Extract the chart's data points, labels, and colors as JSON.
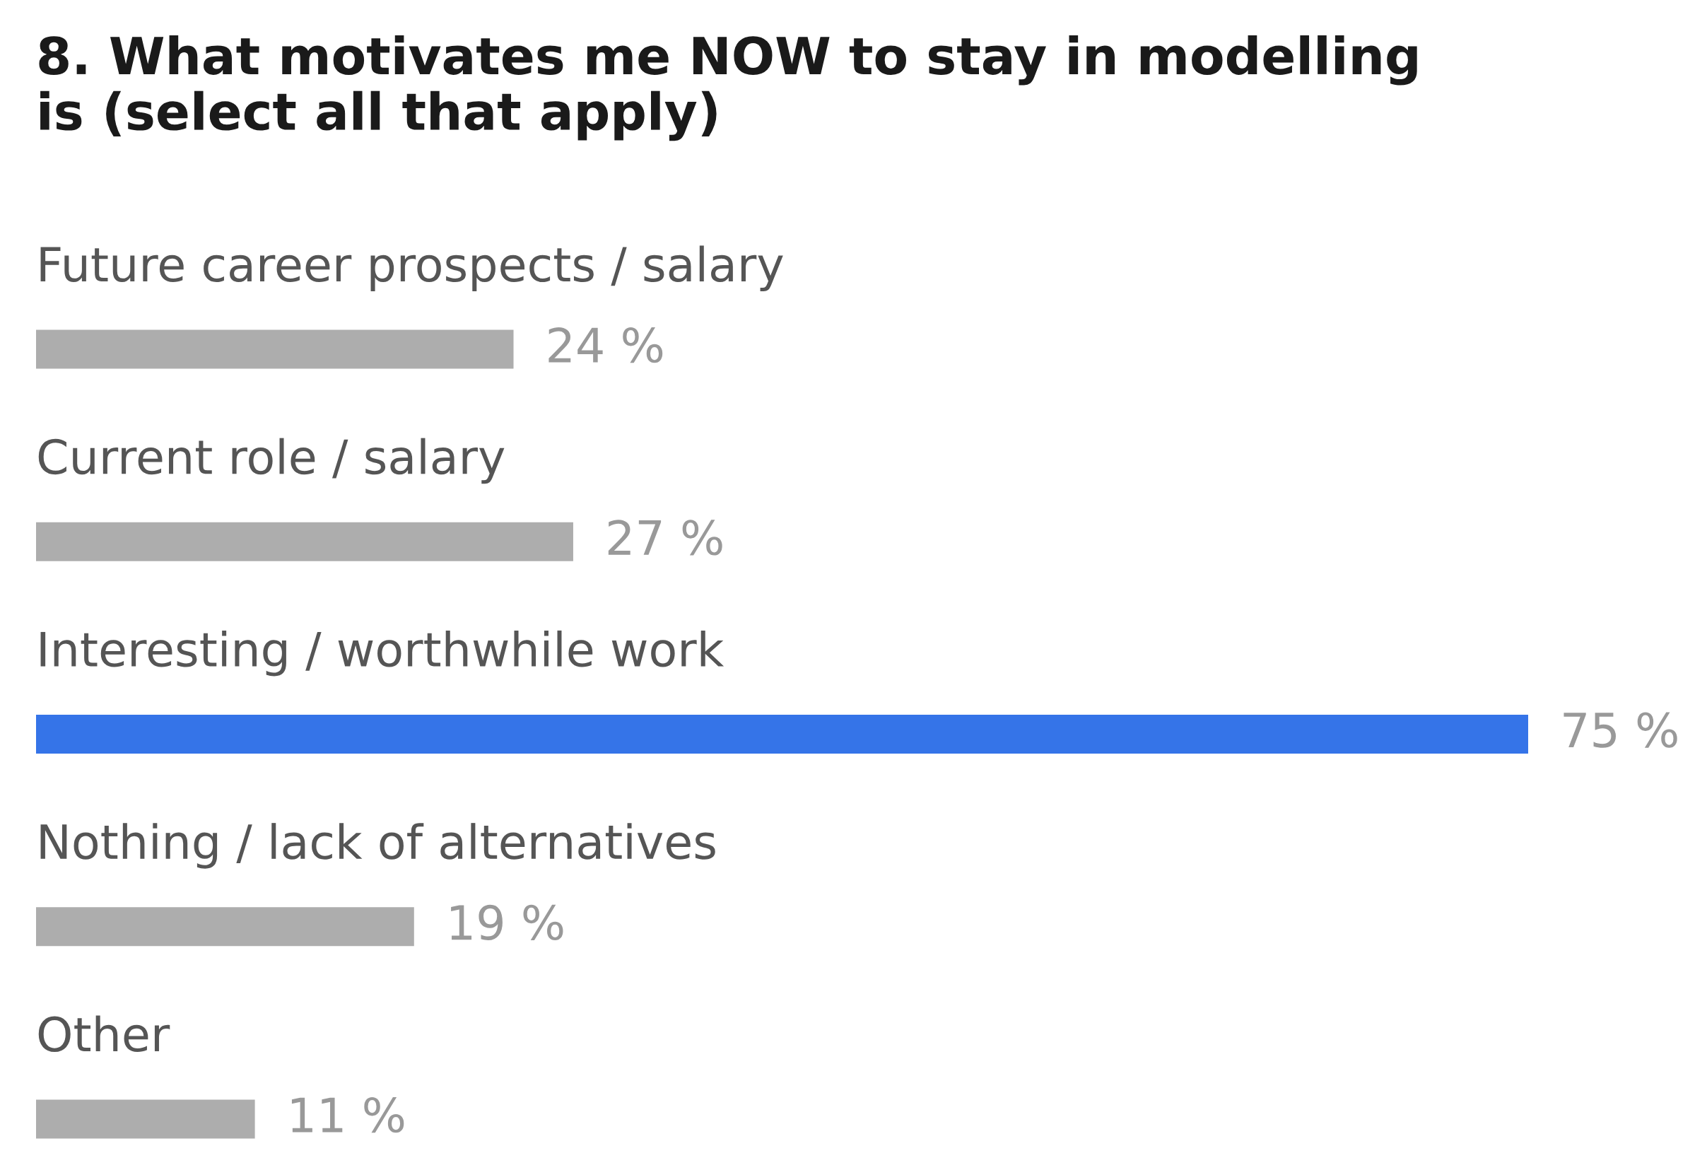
{
  "chart_data": {
    "type": "bar",
    "orientation": "horizontal",
    "title": "8. What motivates me NOW to stay in modelling\nis (select all that apply)",
    "categories": [
      "Future career prospects / salary",
      "Current role / salary",
      "Interesting / worthwhile work",
      "Nothing / lack of alternatives",
      "Other"
    ],
    "values": [
      24,
      27,
      75,
      19,
      11
    ],
    "colors": [
      "#adadad",
      "#adadad",
      "#3574e8",
      "#adadad",
      "#adadad"
    ],
    "value_labels": [
      "24 %",
      "27 %",
      "75 %",
      "19 %",
      "11 %"
    ]
  }
}
